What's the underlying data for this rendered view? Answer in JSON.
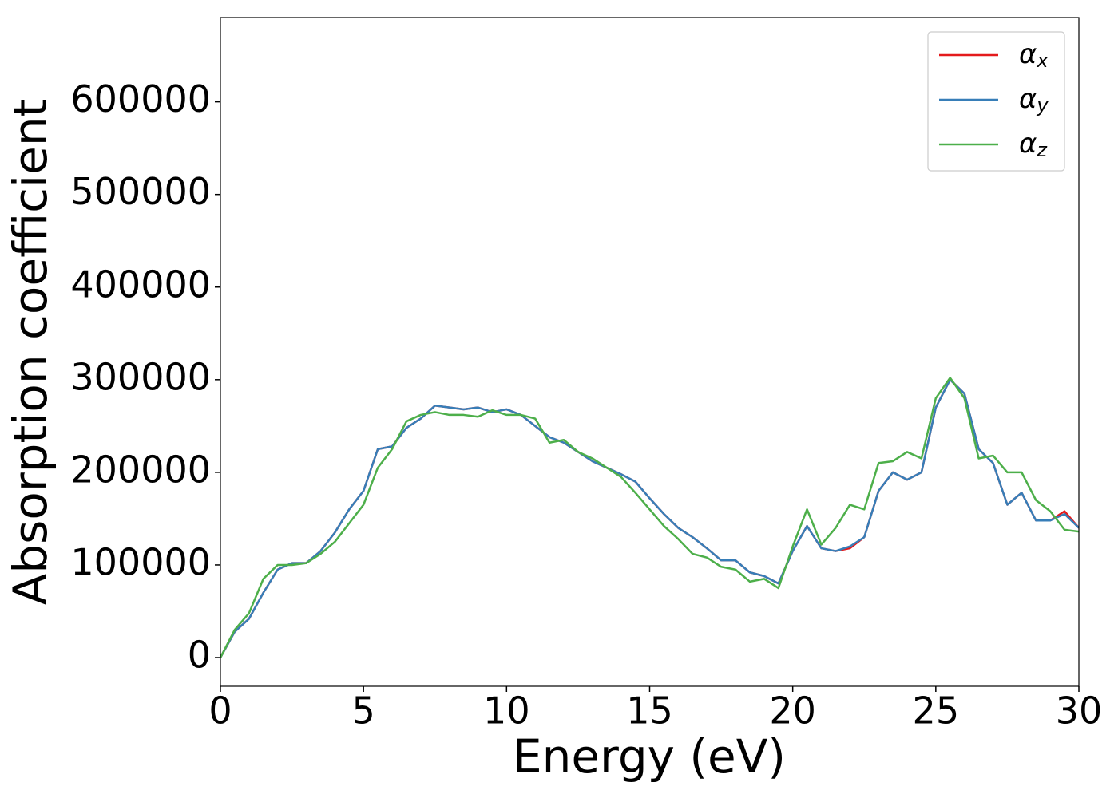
{
  "chart_data": {
    "type": "line",
    "xlabel": "Energy (eV)",
    "ylabel": "Absorption coefficient",
    "x": [
      0,
      0.5,
      1,
      1.5,
      2,
      2.5,
      3,
      3.5,
      4,
      4.5,
      5,
      5.5,
      6,
      6.5,
      7,
      7.5,
      8,
      8.5,
      9,
      9.5,
      10,
      10.5,
      11,
      11.5,
      12,
      12.5,
      13,
      13.5,
      14,
      14.5,
      15,
      15.5,
      16,
      16.5,
      17,
      17.5,
      18,
      18.5,
      19,
      19.5,
      20,
      20.5,
      21,
      21.5,
      22,
      22.5,
      23,
      23.5,
      24,
      24.5,
      25,
      25.5,
      26,
      26.5,
      27,
      27.5,
      28,
      28.5,
      29,
      29.5,
      30
    ],
    "series": [
      {
        "name": "αx",
        "color": "#e41a1c",
        "values": [
          0,
          28000,
          42000,
          70000,
          95000,
          102000,
          102000,
          115000,
          135000,
          160000,
          180000,
          225000,
          228000,
          248000,
          258000,
          272000,
          270000,
          268000,
          270000,
          265000,
          268000,
          262000,
          250000,
          238000,
          232000,
          222000,
          212000,
          205000,
          198000,
          190000,
          172000,
          155000,
          140000,
          130000,
          118000,
          105000,
          105000,
          92000,
          88000,
          80000,
          115000,
          142000,
          118000,
          115000,
          118000,
          130000,
          180000,
          200000,
          192000,
          200000,
          270000,
          300000,
          285000,
          225000,
          210000,
          165000,
          178000,
          148000,
          148000,
          158000,
          140000
        ]
      },
      {
        "name": "αy",
        "color": "#377eb8",
        "values": [
          0,
          28000,
          42000,
          70000,
          95000,
          102000,
          102000,
          115000,
          135000,
          160000,
          180000,
          225000,
          228000,
          248000,
          258000,
          272000,
          270000,
          268000,
          270000,
          265000,
          268000,
          262000,
          250000,
          238000,
          232000,
          222000,
          212000,
          205000,
          198000,
          190000,
          172000,
          155000,
          140000,
          130000,
          118000,
          105000,
          105000,
          92000,
          88000,
          80000,
          115000,
          142000,
          118000,
          115000,
          120000,
          130000,
          180000,
          200000,
          192000,
          200000,
          270000,
          300000,
          285000,
          225000,
          210000,
          165000,
          178000,
          148000,
          148000,
          155000,
          140000
        ]
      },
      {
        "name": "αz",
        "color": "#4daf4a",
        "values": [
          0,
          30000,
          48000,
          85000,
          100000,
          100000,
          102000,
          112000,
          125000,
          145000,
          165000,
          205000,
          225000,
          255000,
          262000,
          265000,
          262000,
          262000,
          260000,
          267000,
          262000,
          262000,
          258000,
          232000,
          235000,
          222000,
          215000,
          205000,
          195000,
          178000,
          160000,
          142000,
          128000,
          112000,
          108000,
          98000,
          95000,
          82000,
          85000,
          75000,
          120000,
          160000,
          122000,
          140000,
          165000,
          160000,
          210000,
          212000,
          222000,
          215000,
          280000,
          302000,
          280000,
          215000,
          218000,
          200000,
          200000,
          170000,
          158000,
          138000,
          136000
        ]
      }
    ],
    "xlim": [
      0,
      30
    ],
    "xticks": [
      0,
      5,
      10,
      15,
      20,
      25,
      30
    ],
    "ylim": [
      -31000,
      691000
    ],
    "yticks": [
      0,
      100000,
      200000,
      300000,
      400000,
      500000,
      600000
    ],
    "legend": "upper right",
    "grid": false
  }
}
